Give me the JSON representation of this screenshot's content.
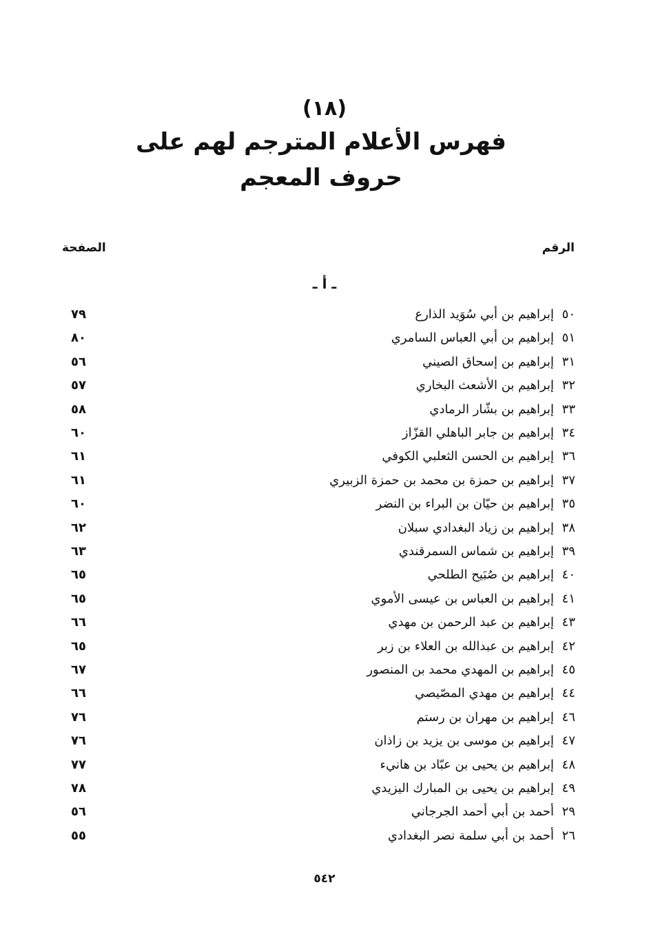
{
  "heading": {
    "number": "(١٨)",
    "line1": "فهرس الأعلام المترجم لهم على",
    "line2": "حروف المعجم"
  },
  "columns": {
    "number": "الرقم",
    "page": "الصفحة"
  },
  "section_letter": "ـ أ ـ",
  "entries": [
    {
      "num": "٥٠",
      "name": "إبراهيم بن أبي سُوَيد الذارع",
      "page": "٧٩"
    },
    {
      "num": "٥١",
      "name": "إبراهيم بن أبي العباس السامري",
      "page": "٨٠"
    },
    {
      "num": "٣١",
      "name": "إبراهيم بن إسحاق الصيني",
      "page": "٥٦"
    },
    {
      "num": "٣٢",
      "name": "إبراهيم بن الأشعث البخاري",
      "page": "٥٧"
    },
    {
      "num": "٣٣",
      "name": "إبراهيم بن بشّار الرمادي",
      "page": "٥٨"
    },
    {
      "num": "٣٤",
      "name": "إبراهيم بن جابر الباهلي القزّاز",
      "page": "٦٠"
    },
    {
      "num": "٣٦",
      "name": "إبراهيم بن الحسن الثعلبي الكوفي",
      "page": "٦١"
    },
    {
      "num": "٣٧",
      "name": "إبراهيم بن حمزة بن محمد بن حمزة الزبيري",
      "page": "٦١"
    },
    {
      "num": "٣٥",
      "name": "إبراهيم بن حيّان بن البراء بن النضر",
      "page": "٦٠"
    },
    {
      "num": "٣٨",
      "name": "إبراهيم بن زياد البغدادي سبلان",
      "page": "٦٢"
    },
    {
      "num": "٣٩",
      "name": "إبراهيم بن شماس السمرقندي",
      "page": "٦٣"
    },
    {
      "num": "٤٠",
      "name": "إبراهيم بن صُبَيح الطلحي",
      "page": "٦٥"
    },
    {
      "num": "٤١",
      "name": "إبراهيم بن العباس بن عيسى الأموي",
      "page": "٦٥"
    },
    {
      "num": "٤٣",
      "name": "إبراهيم بن عبد الرحمن بن مهدي",
      "page": "٦٦"
    },
    {
      "num": "٤٢",
      "name": "إبراهيم بن عبدالله بن العلاء بن زبر",
      "page": "٦٥"
    },
    {
      "num": "٤٥",
      "name": "إبراهيم بن المهدي محمد بن المنصور",
      "page": "٦٧"
    },
    {
      "num": "٤٤",
      "name": "إبراهيم بن مهدي المصّيصي",
      "page": "٦٦"
    },
    {
      "num": "٤٦",
      "name": "إبراهيم بن مهران بن رستم",
      "page": "٧٦"
    },
    {
      "num": "٤٧",
      "name": "إبراهيم بن موسى بن يزيد بن زاذان",
      "page": "٧٦"
    },
    {
      "num": "٤٨",
      "name": "إبراهيم بن يحيى بن عبّاد بن هانيء",
      "page": "٧٧"
    },
    {
      "num": "٤٩",
      "name": "إبراهيم بن يحيى بن المبارك اليزيدي",
      "page": "٧٨"
    },
    {
      "num": "٢٩",
      "name": "أحمد بن أبي أحمد الجرجاني",
      "page": "٥٦"
    },
    {
      "num": "٢٦",
      "name": "أحمد بن أبي سلمة نصر البغدادي",
      "page": "٥٥"
    }
  ],
  "folio": "٥٤٢"
}
